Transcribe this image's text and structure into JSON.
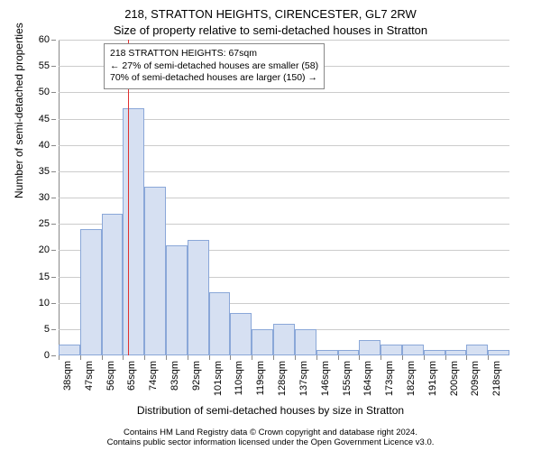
{
  "chart": {
    "type": "histogram",
    "title_main": "218, STRATTON HEIGHTS, CIRENCESTER, GL7 2RW",
    "title_sub": "Size of property relative to semi-detached houses in Stratton",
    "ylabel": "Number of semi-detached properties",
    "xlabel": "Distribution of semi-detached houses by size in Stratton",
    "background_color": "#ffffff",
    "grid_color": "#cccccc",
    "bar_fill": "#d6e0f2",
    "bar_stroke": "#8aa7d8",
    "marker_color": "#e03030",
    "ylim": [
      0,
      60
    ],
    "ytick_step": 5,
    "x_start": 38,
    "x_step": 9,
    "x_unit": "sqm",
    "x_tick_count": 21,
    "marker_value": 67,
    "values": [
      2,
      24,
      27,
      47,
      32,
      21,
      22,
      12,
      8,
      5,
      6,
      5,
      1,
      1,
      3,
      2,
      2,
      1,
      1,
      2,
      1
    ],
    "info_box": {
      "line1": "218 STRATTON HEIGHTS: 67sqm",
      "line2": "← 27% of semi-detached houses are smaller (58)",
      "line3": "70% of semi-detached houses are larger (150) →"
    },
    "attribution_line1": "Contains HM Land Registry data © Crown copyright and database right 2024.",
    "attribution_line2": "Contains public sector information licensed under the Open Government Licence v3.0."
  }
}
